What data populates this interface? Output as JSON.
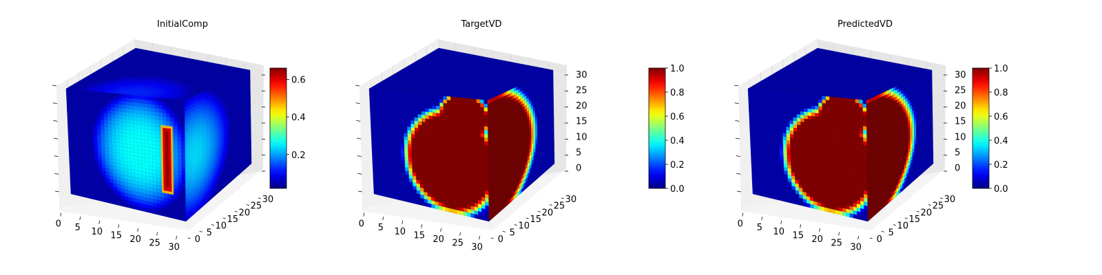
{
  "chart_data": [
    {
      "type": "heatmap",
      "subtype": "3d-voxel",
      "title": "InitialComp",
      "xlabel": "",
      "ylabel": "",
      "zlabel": "",
      "x_ticks": [
        "0",
        "5",
        "10",
        "15",
        "20",
        "25",
        "30"
      ],
      "y_ticks": [
        "0",
        "5",
        "10",
        "15",
        "20",
        "25",
        "30"
      ],
      "z_ticks": [],
      "xlim": [
        0,
        32
      ],
      "ylim": [
        0,
        32
      ],
      "zlim": [
        0,
        32
      ],
      "colormap": "jet",
      "colorbar_range": [
        0.02,
        0.66
      ],
      "colorbar_ticks": [
        "0.2",
        "0.4",
        "0.6"
      ],
      "colorbar_tick_values": [
        0.2,
        0.4,
        0.6
      ],
      "front_face_pattern": "soft-blob",
      "front_blob_peak": 0.34,
      "side_face_pattern": "mid-blob",
      "side_face_peak": 0.3,
      "hot_bar": {
        "z_range": [
          8,
          25
        ],
        "value": 0.62
      }
    },
    {
      "type": "heatmap",
      "subtype": "3d-voxel",
      "title": "TargetVD",
      "xlabel": "",
      "ylabel": "",
      "zlabel": "",
      "x_ticks": [
        "0",
        "5",
        "10",
        "15",
        "20",
        "25",
        "30"
      ],
      "y_ticks": [
        "0",
        "5",
        "10",
        "15",
        "20",
        "25",
        "30"
      ],
      "z_ticks": [
        "0",
        "5",
        "10",
        "15",
        "20",
        "25",
        "30"
      ],
      "xlim": [
        0,
        32
      ],
      "ylim": [
        0,
        32
      ],
      "zlim": [
        0,
        32
      ],
      "colormap": "jet",
      "colorbar_range": [
        0.0,
        1.0
      ],
      "colorbar_ticks": [
        "0.0",
        "0.2",
        "0.4",
        "0.6",
        "0.8",
        "1.0"
      ],
      "colorbar_tick_values": [
        0.0,
        0.2,
        0.4,
        0.6,
        0.8,
        1.0
      ],
      "front_face_pattern": "sharp-region",
      "side_face_pattern": "dark-red-region"
    },
    {
      "type": "heatmap",
      "subtype": "3d-voxel",
      "title": "PredictedVD",
      "xlabel": "",
      "ylabel": "",
      "zlabel": "",
      "x_ticks": [
        "0",
        "5",
        "10",
        "15",
        "20",
        "25",
        "30"
      ],
      "y_ticks": [
        "0",
        "5",
        "10",
        "15",
        "20",
        "25",
        "30"
      ],
      "z_ticks": [
        "0",
        "5",
        "10",
        "15",
        "20",
        "25",
        "30"
      ],
      "xlim": [
        0,
        32
      ],
      "ylim": [
        0,
        32
      ],
      "zlim": [
        0,
        32
      ],
      "colormap": "jet",
      "colorbar_range": [
        0.0,
        1.0
      ],
      "colorbar_ticks": [
        "0.0",
        "0.2",
        "0.4",
        "0.6",
        "0.8",
        "1.0"
      ],
      "colorbar_tick_values": [
        0.0,
        0.2,
        0.4,
        0.6,
        0.8,
        1.0
      ],
      "front_face_pattern": "sharp-region",
      "side_face_pattern": "dark-red-region"
    }
  ]
}
